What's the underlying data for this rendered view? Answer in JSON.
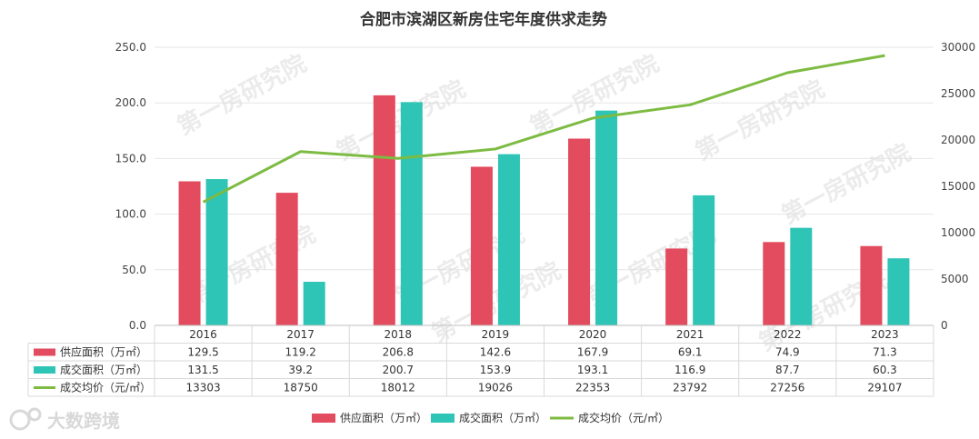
{
  "chart_data": {
    "type": "bar",
    "title": "合肥市滨湖区新房住宅年度供求走势",
    "categories": [
      "2016",
      "2017",
      "2018",
      "2019",
      "2020",
      "2021",
      "2022",
      "2023"
    ],
    "series": [
      {
        "name": "供应面积（万㎡）",
        "type": "bar",
        "axis": "left",
        "color": "#e34b5e",
        "values": [
          129.5,
          119.2,
          206.8,
          142.6,
          167.9,
          69.1,
          74.9,
          71.3
        ]
      },
      {
        "name": "成交面积（万㎡）",
        "type": "bar",
        "axis": "left",
        "color": "#2ec4b6",
        "values": [
          131.5,
          39.2,
          200.7,
          153.9,
          193.1,
          116.9,
          87.7,
          60.3
        ]
      },
      {
        "name": "成交均价（元/㎡）",
        "type": "line",
        "axis": "right",
        "color": "#7dbb42",
        "values": [
          13303,
          18750,
          18012,
          19026,
          22353,
          23792,
          27256,
          29107
        ]
      }
    ],
    "y_left": {
      "ylim": [
        0,
        250
      ],
      "ticks": [
        "0.0",
        "50.0",
        "100.0",
        "150.0",
        "200.0",
        "250.0"
      ]
    },
    "y_right": {
      "ylim": [
        0,
        30000
      ],
      "ticks": [
        "0",
        "5000",
        "10000",
        "15000",
        "20000",
        "25000",
        "30000"
      ]
    },
    "grid": true,
    "data_table": true,
    "legend_position": "bottom",
    "watermark": "第一房研究院",
    "brand": "大数跨境"
  }
}
